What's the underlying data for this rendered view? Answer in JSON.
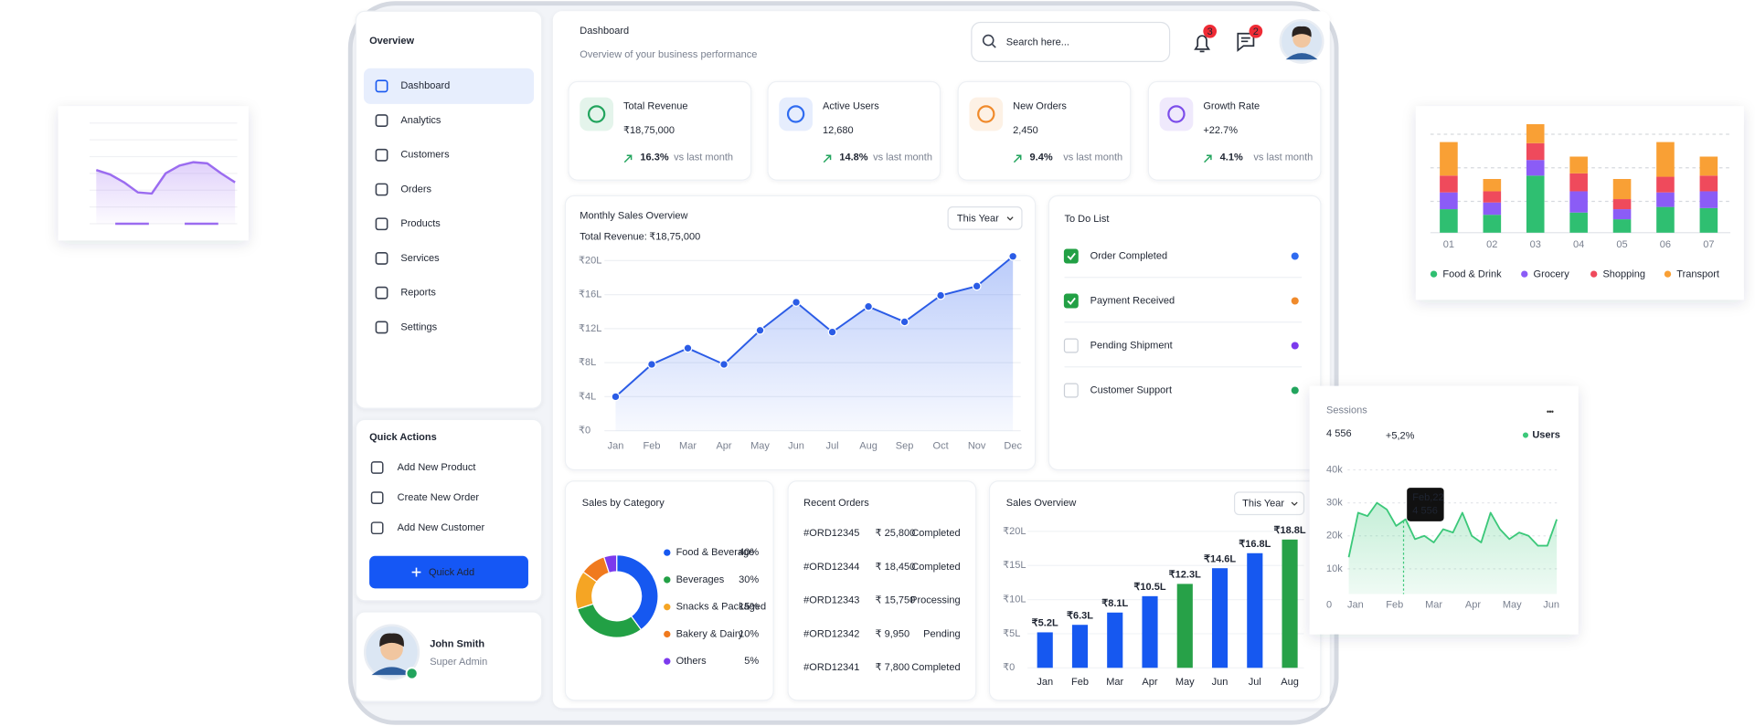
{
  "sidebar": {
    "title": "Overview",
    "menu": [
      {
        "label": "Dashboard",
        "active": true
      },
      {
        "label": "Analytics"
      },
      {
        "label": "Customers"
      },
      {
        "label": "Orders"
      },
      {
        "label": "Products"
      },
      {
        "label": "Services"
      },
      {
        "label": "Reports"
      },
      {
        "label": "Settings"
      }
    ]
  },
  "quick_actions": {
    "title": "Quick Actions",
    "items": [
      "Add New Product",
      "Create New Order",
      "Add New Customer"
    ],
    "button": "Quick Add"
  },
  "user": {
    "name": "John Smith",
    "role": "Super Admin"
  },
  "header": {
    "title": "Dashboard",
    "subtitle": "Overview of your business performance",
    "search_placeholder": "Search here...",
    "notifications": 3,
    "messages": 2
  },
  "stats": [
    {
      "label": "Total Revenue",
      "value": "₹18,75,000",
      "change": "16.3%",
      "note": "vs last month",
      "color": "#22a45d"
    },
    {
      "label": "Active Users",
      "value": "12,680",
      "change": "14.8%",
      "note": "vs last month",
      "color": "#2f6bf0"
    },
    {
      "label": "New Orders",
      "value": "2,450",
      "change": "9.4%",
      "note": "vs last month",
      "color": "#f08a2b"
    },
    {
      "label": "Growth Rate",
      "value": "+22.7%",
      "change": "4.1%",
      "note": "vs last month",
      "color": "#7c4dea"
    }
  ],
  "todo": {
    "title": "To Do List",
    "items": [
      {
        "label": "Order Completed",
        "done": true,
        "color": "#2f6bf0"
      },
      {
        "label": "Payment Received",
        "done": true,
        "color": "#f08a2b"
      },
      {
        "label": "Pending Shipment",
        "done": false,
        "color": "#7c3aed"
      },
      {
        "label": "Customer Support",
        "done": false,
        "color": "#22a45d"
      }
    ]
  },
  "recent_orders": {
    "title": "Recent Orders",
    "rows": [
      {
        "id": "#ORD12345",
        "amount": "₹ 25,800",
        "status": "Completed",
        "color": "#22a45d"
      },
      {
        "id": "#ORD12344",
        "amount": "₹ 18,450",
        "status": "Completed",
        "color": "#22a45d"
      },
      {
        "id": "#ORD12343",
        "amount": "₹ 15,750",
        "status": "Processing",
        "color": "#f08a2b"
      },
      {
        "id": "#ORD12342",
        "amount": "₹ 9,950",
        "status": "Pending",
        "color": "#7c3aed"
      },
      {
        "id": "#ORD12341",
        "amount": "₹ 7,800",
        "status": "Completed",
        "color": "#22a45d"
      }
    ]
  },
  "chart_data": [
    {
      "type": "line",
      "title": "Monthly Sales Overview",
      "period": "This Year",
      "total_label": "Total Revenue:",
      "total": "₹18,75,000",
      "categories": [
        "Jan",
        "Feb",
        "Mar",
        "Apr",
        "May",
        "Jun",
        "Jul",
        "Aug",
        "Sep",
        "Oct",
        "Nov",
        "Dec"
      ],
      "values": [
        4,
        7.8,
        9.7,
        7.8,
        11.8,
        15.1,
        11.6,
        14.6,
        12.8,
        15.9,
        17,
        20.5
      ],
      "color": "#2b5ce6",
      "ylim": [
        0,
        20
      ],
      "yticks": [
        {
          "value": 0,
          "label": "₹0"
        },
        {
          "value": 4,
          "label": "₹4L"
        },
        {
          "value": 8,
          "label": "₹8L"
        },
        {
          "value": 12,
          "label": "₹12L"
        },
        {
          "value": 16,
          "label": "₹16L"
        },
        {
          "value": 20,
          "label": "₹20L"
        }
      ],
      "grid": true
    },
    {
      "type": "pie",
      "title": "Sales by Category",
      "categories": [
        "Food & Beverage",
        "Beverages",
        "Snacks & Packaged",
        "Bakery & Dairy",
        "Others"
      ],
      "values": [
        40,
        30,
        15,
        10,
        5
      ],
      "value_labels": [
        "40%",
        "30%",
        "15%",
        "10%",
        "5%"
      ],
      "colors": [
        "#1658f0",
        "#22a045",
        "#f5a524",
        "#f07a1e",
        "#7c3aed"
      ]
    },
    {
      "type": "bar",
      "title": "Sales Overview",
      "period": "This Year",
      "categories": [
        "Jan",
        "Feb",
        "Mar",
        "Apr",
        "May",
        "Jun",
        "Jul",
        "Aug"
      ],
      "values": [
        5.2,
        6.3,
        8.1,
        10.5,
        12.3,
        14.6,
        16.8,
        18.8
      ],
      "value_labels": [
        "₹5.2L",
        "₹6.3L",
        "₹8.1L",
        "₹10.5L",
        "₹12.3L",
        "₹14.6L",
        "₹16.8L",
        "₹18.8L"
      ],
      "colors": [
        "#1658f0",
        "#1658f0",
        "#1658f0",
        "#1658f0",
        "#27a148",
        "#1658f0",
        "#1658f0",
        "#27a148"
      ],
      "ylim": [
        0,
        20
      ],
      "yticks": [
        {
          "value": 0,
          "label": "₹0"
        },
        {
          "value": 5,
          "label": "₹5L"
        },
        {
          "value": 10,
          "label": "₹10L"
        },
        {
          "value": 15,
          "label": "₹15L"
        },
        {
          "value": 20,
          "label": "₹20L"
        }
      ]
    },
    {
      "type": "stacked_bar",
      "categories": [
        "01",
        "02",
        "03",
        "04",
        "05",
        "06",
        "07"
      ],
      "ylim": [
        0,
        100
      ],
      "series": [
        {
          "name": "Food & Drink",
          "color": "#2fbf71",
          "values": [
            21,
            16,
            51,
            18,
            12,
            23,
            22
          ]
        },
        {
          "name": "Grocery",
          "color": "#8b5cf6",
          "values": [
            15,
            11,
            14,
            19,
            9,
            13,
            15
          ]
        },
        {
          "name": "Shopping",
          "color": "#ef4a5c",
          "values": [
            15,
            10,
            15,
            16,
            9,
            14,
            14
          ]
        },
        {
          "name": "Transport",
          "color": "#f9a035",
          "values": [
            30,
            11,
            17,
            15,
            18,
            31,
            17
          ]
        }
      ]
    },
    {
      "type": "area",
      "title": "Sessions",
      "total": "4 556",
      "change": "+5,2%",
      "x": [
        -0.17,
        0.07,
        0.31,
        0.55,
        0.8,
        1.04,
        1.28,
        1.52,
        1.76,
        2,
        2.24,
        2.49,
        2.73,
        2.97,
        3.21,
        3.45,
        3.69,
        3.93,
        4.18,
        4.42,
        4.66,
        4.9,
        5.14
      ],
      "series": [
        {
          "name": "Users",
          "color": "#3cc87a",
          "values": [
            13.5,
            27,
            26,
            30,
            28,
            23,
            25,
            19,
            20,
            18,
            22,
            21,
            27,
            20,
            18,
            27,
            22,
            19,
            21,
            20,
            17,
            17,
            25
          ]
        }
      ],
      "xlim": [
        -0.2,
        5.2
      ],
      "xticks": [
        {
          "value": 0,
          "label": "Jan"
        },
        {
          "value": 1,
          "label": "Feb"
        },
        {
          "value": 2,
          "label": "Mar"
        },
        {
          "value": 3,
          "label": "Apr"
        },
        {
          "value": 4,
          "label": "May"
        },
        {
          "value": 5,
          "label": "Jun"
        }
      ],
      "ylim": [
        0,
        40
      ],
      "yticks": [
        0,
        {
          "value": 10,
          "label": "10k"
        },
        {
          "value": 20,
          "label": "20k"
        },
        {
          "value": 30,
          "label": "30k"
        },
        {
          "value": 40,
          "label": "40k"
        }
      ],
      "tooltip": {
        "label": "Feb,22",
        "value": "4 556"
      }
    },
    {
      "type": "line",
      "values": [
        63,
        59,
        52,
        43,
        42,
        60,
        67,
        70,
        69,
        60,
        52
      ],
      "color": "#9b6cf0",
      "ylim": [
        0,
        100
      ]
    }
  ]
}
